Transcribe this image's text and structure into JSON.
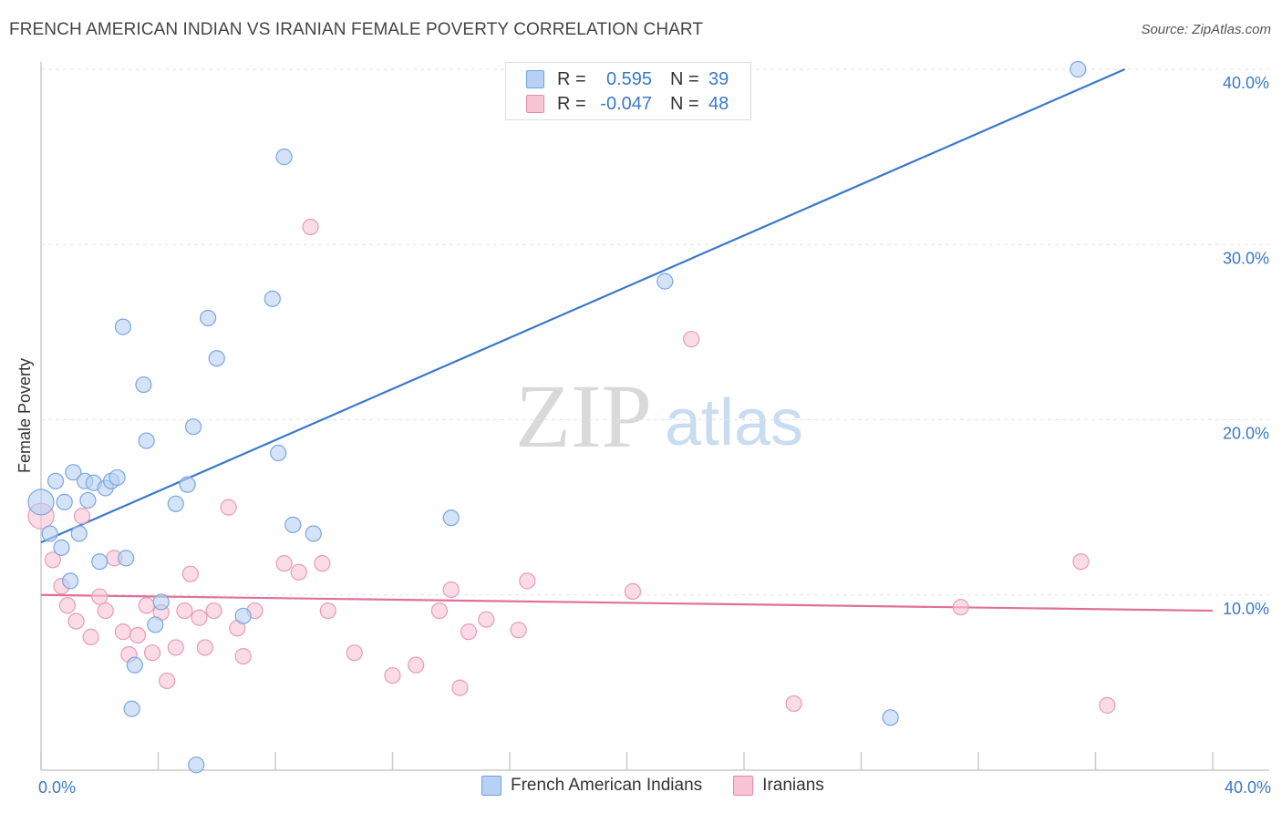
{
  "title": "FRENCH AMERICAN INDIAN VS IRANIAN FEMALE POVERTY CORRELATION CHART",
  "source": "Source: ZipAtlas.com",
  "watermark": {
    "zip": "ZIP",
    "atlas": "atlas"
  },
  "legend": {
    "r_label": "R =",
    "n_label": "N =",
    "rows": [
      {
        "name": "French American Indians",
        "r": "0.595",
        "n": "39",
        "fill": "#b8d1f3",
        "stroke": "#6f9fe0"
      },
      {
        "name": "Iranians",
        "r": "-0.047",
        "n": "48",
        "fill": "#f8c5d5",
        "stroke": "#e58aa8"
      }
    ]
  },
  "chart_data": {
    "type": "scatter",
    "title": "FRENCH AMERICAN INDIAN VS IRANIAN FEMALE POVERTY CORRELATION CHART",
    "xlabel": "",
    "ylabel": "Female Poverty",
    "xlim": [
      0,
      40
    ],
    "ylim": [
      0,
      40
    ],
    "x_tick_labels": [
      {
        "value": 0,
        "label": "0.0%"
      },
      {
        "value": 40,
        "label": "40.0%"
      }
    ],
    "y_tick_labels": [
      {
        "value": 10,
        "label": "10.0%"
      },
      {
        "value": 20,
        "label": "20.0%"
      },
      {
        "value": 30,
        "label": "30.0%"
      },
      {
        "value": 40,
        "label": "40.0%"
      }
    ],
    "series": [
      {
        "name": "French American Indians",
        "color": "#3a78c9",
        "fill": "#b8d1f3",
        "points": [
          [
            0.0,
            15.3
          ],
          [
            0.3,
            13.5
          ],
          [
            0.5,
            16.5
          ],
          [
            0.7,
            12.7
          ],
          [
            0.8,
            15.3
          ],
          [
            1.0,
            10.8
          ],
          [
            1.1,
            17.0
          ],
          [
            1.3,
            13.5
          ],
          [
            1.5,
            16.5
          ],
          [
            1.6,
            15.4
          ],
          [
            1.8,
            16.4
          ],
          [
            2.0,
            11.9
          ],
          [
            2.2,
            16.1
          ],
          [
            2.4,
            16.5
          ],
          [
            2.6,
            16.7
          ],
          [
            2.8,
            25.3
          ],
          [
            2.9,
            12.1
          ],
          [
            3.1,
            3.5
          ],
          [
            3.2,
            6.0
          ],
          [
            3.5,
            22.0
          ],
          [
            3.6,
            18.8
          ],
          [
            3.9,
            8.3
          ],
          [
            4.1,
            9.6
          ],
          [
            4.6,
            15.2
          ],
          [
            5.0,
            16.3
          ],
          [
            5.2,
            19.6
          ],
          [
            5.3,
            0.3
          ],
          [
            5.7,
            25.8
          ],
          [
            6.0,
            23.5
          ],
          [
            6.9,
            8.8
          ],
          [
            7.9,
            26.9
          ],
          [
            8.1,
            18.1
          ],
          [
            8.3,
            35.0
          ],
          [
            8.6,
            14.0
          ],
          [
            9.3,
            13.5
          ],
          [
            14.0,
            14.4
          ],
          [
            21.3,
            27.9
          ],
          [
            29.0,
            3.0
          ],
          [
            35.4,
            40.0
          ]
        ],
        "trend": {
          "x0": 0,
          "y0": 13.0,
          "x1": 37.0,
          "y1": 40.0
        }
      },
      {
        "name": "Iranians",
        "color": "#e0709a",
        "fill": "#f8c5d5",
        "points": [
          [
            0.0,
            14.5
          ],
          [
            0.4,
            12.0
          ],
          [
            0.7,
            10.5
          ],
          [
            0.9,
            9.4
          ],
          [
            1.2,
            8.5
          ],
          [
            1.4,
            14.5
          ],
          [
            1.7,
            7.6
          ],
          [
            2.0,
            9.9
          ],
          [
            2.2,
            9.1
          ],
          [
            2.5,
            12.1
          ],
          [
            2.8,
            7.9
          ],
          [
            3.0,
            6.6
          ],
          [
            3.3,
            7.7
          ],
          [
            3.6,
            9.4
          ],
          [
            3.8,
            6.7
          ],
          [
            4.1,
            9.0
          ],
          [
            4.3,
            5.1
          ],
          [
            4.6,
            7.0
          ],
          [
            4.9,
            9.1
          ],
          [
            5.1,
            11.2
          ],
          [
            5.4,
            8.7
          ],
          [
            5.6,
            7.0
          ],
          [
            5.9,
            9.1
          ],
          [
            6.4,
            15.0
          ],
          [
            6.7,
            8.1
          ],
          [
            6.9,
            6.5
          ],
          [
            7.3,
            9.1
          ],
          [
            8.3,
            11.8
          ],
          [
            8.8,
            11.3
          ],
          [
            9.2,
            31.0
          ],
          [
            9.6,
            11.8
          ],
          [
            9.8,
            9.1
          ],
          [
            10.7,
            6.7
          ],
          [
            12.0,
            5.4
          ],
          [
            12.8,
            6.0
          ],
          [
            13.6,
            9.1
          ],
          [
            14.0,
            10.3
          ],
          [
            14.3,
            4.7
          ],
          [
            14.6,
            7.9
          ],
          [
            15.2,
            8.6
          ],
          [
            16.3,
            8.0
          ],
          [
            16.6,
            10.8
          ],
          [
            20.2,
            10.2
          ],
          [
            22.2,
            24.6
          ],
          [
            25.7,
            3.8
          ],
          [
            31.4,
            9.3
          ],
          [
            35.5,
            11.9
          ],
          [
            36.4,
            3.7
          ]
        ],
        "trend": {
          "x0": 0,
          "y0": 10.0,
          "x1": 40.0,
          "y1": 9.1
        }
      }
    ]
  }
}
